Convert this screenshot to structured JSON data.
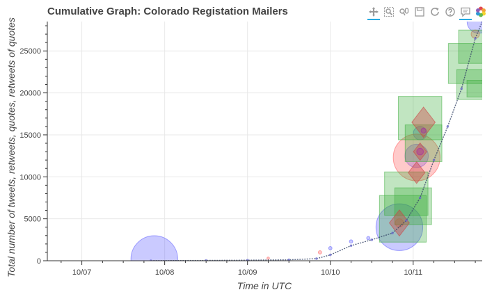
{
  "chart_data": {
    "type": "scatter",
    "title": "Cumulative Graph: Colorado Registation Mailers",
    "xlabel": "Time in UTC",
    "ylabel": "Total number of tweets, retweets, quotes, retweets of quotes",
    "x_ticks": [
      "10/07",
      "10/08",
      "10/09",
      "10/10",
      "10/11"
    ],
    "y_ticks": [
      0,
      5000,
      10000,
      15000,
      20000,
      25000
    ],
    "xlim": [
      "10/06 14:00",
      "10/11 20:00"
    ],
    "ylim": [
      0,
      28500
    ],
    "grid": true,
    "legend": "none",
    "cumulative_line": {
      "x": [
        "10/07 20:00",
        "10/08 12:00",
        "10/09 00:00",
        "10/09 12:00",
        "10/09 20:00",
        "10/10 00:00",
        "10/10 06:00",
        "10/10 12:00",
        "10/10 18:00",
        "10/10 22:00",
        "10/11 02:00",
        "10/11 06:00",
        "10/11 10:00",
        "10/11 14:00",
        "10/11 18:00",
        "10/11 20:00"
      ],
      "y": [
        10,
        40,
        70,
        120,
        250,
        700,
        1800,
        2500,
        3300,
        4800,
        7500,
        12000,
        16000,
        20500,
        26500,
        28500
      ]
    },
    "series": [
      {
        "marker": "circle",
        "color": "#6666ff",
        "points": [
          {
            "x": "10/07 21:00",
            "y": 200,
            "size": 28
          },
          {
            "x": "10/10 20:00",
            "y": 4000,
            "size": 28
          },
          {
            "x": "10/11 01:00",
            "y": 12500,
            "size": 14
          },
          {
            "x": "10/11 02:00",
            "y": 15200,
            "size": 8
          },
          {
            "x": "10/11 19:00",
            "y": 28500,
            "size": 14
          },
          {
            "x": "10/10 00:00",
            "y": 1500,
            "size": 2
          },
          {
            "x": "10/10 06:00",
            "y": 2300,
            "size": 2
          },
          {
            "x": "10/10 11:00",
            "y": 2700,
            "size": 2
          }
        ]
      },
      {
        "marker": "circle",
        "color": "#ff6666",
        "points": [
          {
            "x": "10/11 01:00",
            "y": 12300,
            "size": 28
          },
          {
            "x": "10/10 20:00",
            "y": 4500,
            "size": 5
          },
          {
            "x": "10/11 18:00",
            "y": 27000,
            "size": 5
          },
          {
            "x": "10/09 21:00",
            "y": 1000,
            "size": 2
          },
          {
            "x": "10/09 06:00",
            "y": 300,
            "size": 1.5
          }
        ]
      },
      {
        "marker": "square",
        "color": "#33aa33",
        "points": [
          {
            "x": "10/10 21:00",
            "y": 5000,
            "size": 28
          },
          {
            "x": "10/10 22:00",
            "y": 8000,
            "size": 26
          },
          {
            "x": "10/11 00:00",
            "y": 6500,
            "size": 22
          },
          {
            "x": "10/11 02:00",
            "y": 17000,
            "size": 26
          },
          {
            "x": "10/11 03:00",
            "y": 14000,
            "size": 22
          },
          {
            "x": "10/11 16:00",
            "y": 23500,
            "size": 24
          },
          {
            "x": "10/11 17:00",
            "y": 21000,
            "size": 18
          },
          {
            "x": "10/11 18:00",
            "y": 25500,
            "size": 20
          },
          {
            "x": "10/11 18:00",
            "y": 20500,
            "size": 10
          }
        ]
      },
      {
        "marker": "diamond",
        "color": "#cc4444",
        "points": [
          {
            "x": "10/10 20:00",
            "y": 4500,
            "size": 12
          },
          {
            "x": "10/11 01:00",
            "y": 10500,
            "size": 10
          },
          {
            "x": "10/11 03:00",
            "y": 16500,
            "size": 14
          },
          {
            "x": "10/11 02:00",
            "y": 13000,
            "size": 8
          }
        ]
      },
      {
        "marker": "circle",
        "color": "#aa22aa",
        "points": [
          {
            "x": "10/11 02:00",
            "y": 13000,
            "size": 4
          },
          {
            "x": "10/11 03:00",
            "y": 15500,
            "size": 3
          }
        ]
      }
    ]
  },
  "toolbar": {
    "tools": [
      "pan-icon",
      "box-zoom-icon",
      "wheel-zoom-icon",
      "save-icon",
      "reset-icon",
      "help-icon",
      "hover-icon",
      "bokeh-logo-icon"
    ],
    "accent_color": "#26aae1"
  }
}
